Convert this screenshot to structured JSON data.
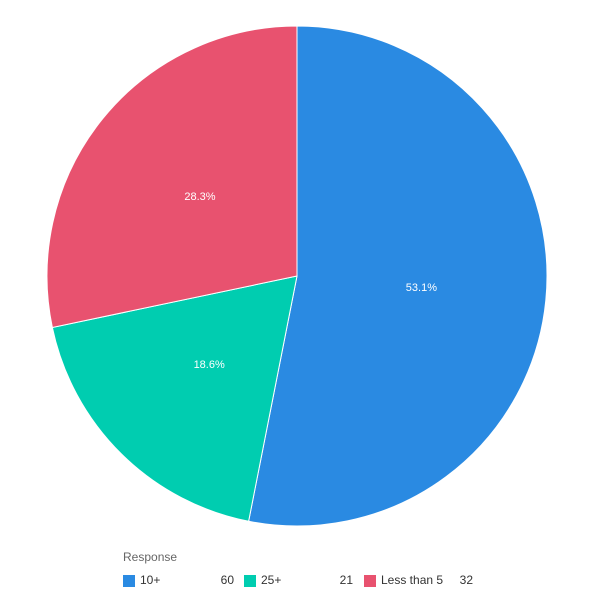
{
  "chart_data": {
    "type": "pie",
    "categories": [
      "10+",
      "25+",
      "Less than 5"
    ],
    "values": [
      53.1,
      18.6,
      28.3
    ],
    "value_labels": [
      "53.1%",
      "18.6%",
      "28.3%"
    ],
    "counts": [
      60,
      21,
      32
    ],
    "colors": [
      "#2a8ae2",
      "#00cdb0",
      "#e8526f"
    ],
    "legend_title": "Response"
  }
}
